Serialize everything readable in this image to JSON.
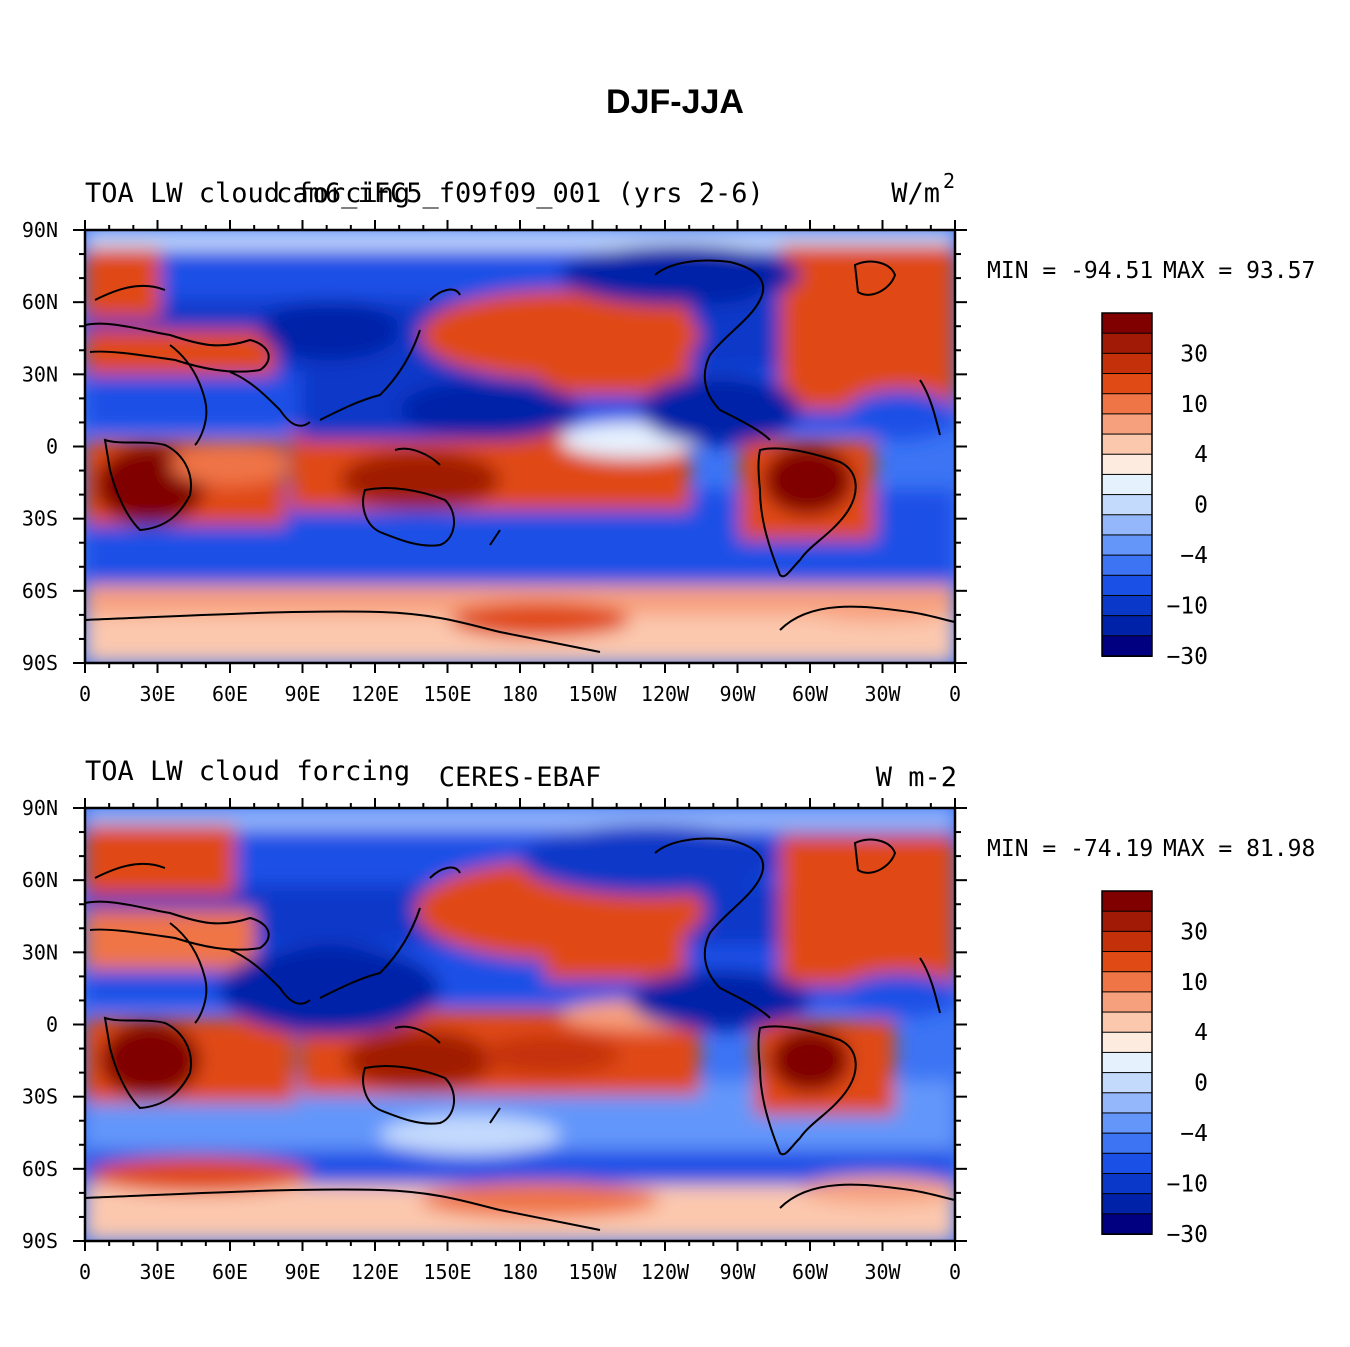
{
  "page_title": "DJF-JJA",
  "colorbar": {
    "colors": [
      "#000080",
      "#0022a8",
      "#0a38c8",
      "#1a50e6",
      "#3c74f4",
      "#6496fa",
      "#94b6fb",
      "#c4dafd",
      "#e6f1fe",
      "#fdebdf",
      "#fbc8ae",
      "#f7a07e",
      "#ef7446",
      "#e04a14",
      "#c4300a",
      "#a01a06",
      "#800000"
    ],
    "labels": [
      "30",
      "10",
      "4",
      "0",
      "-4",
      "-10",
      "-30"
    ]
  },
  "axes": {
    "lon_labels": [
      "0",
      "30E",
      "60E",
      "90E",
      "120E",
      "150E",
      "180",
      "150W",
      "120W",
      "90W",
      "60W",
      "30W",
      "0"
    ],
    "lat_labels": [
      "90N",
      "60N",
      "30N",
      "0",
      "30S",
      "60S",
      "90S"
    ]
  },
  "panels": [
    {
      "left_title": "TOA LW cloud forcing",
      "center_title": "cam6_iFC5_f09f09_001 (yrs 2-6)",
      "units": "W/m",
      "units_sup": "2",
      "min_label": "MIN = -94.51",
      "max_label": "MAX =  93.57"
    },
    {
      "left_title": "TOA LW cloud forcing",
      "center_title": "CERES-EBAF",
      "units": "W m-2",
      "units_sup": "",
      "min_label": "MIN = -74.19",
      "max_label": "MAX =  81.98"
    }
  ]
}
